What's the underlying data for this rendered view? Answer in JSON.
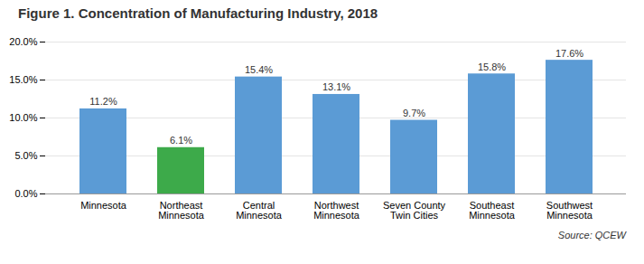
{
  "chart_data": {
    "type": "bar",
    "title": "Figure 1.  Concentration of Manufacturing Industry, 2018",
    "categories": [
      "Minnesota",
      "Northeast\nMinnesota",
      "Central\nMinnesota",
      "Northwest\nMinnesota",
      "Seven County\nTwin Cities",
      "Southeast\nMinnesota",
      "Southwest\nMinnesota"
    ],
    "values": [
      11.2,
      6.1,
      15.4,
      13.1,
      9.7,
      15.8,
      17.6
    ],
    "value_labels": [
      "11.2%",
      "6.1%",
      "15.4%",
      "13.1%",
      "9.7%",
      "15.8%",
      "17.6%"
    ],
    "colors": [
      "#5B9BD5",
      "#3DAA4A",
      "#5B9BD5",
      "#5B9BD5",
      "#5B9BD5",
      "#5B9BD5",
      "#5B9BD5"
    ],
    "ylim": [
      0,
      20
    ],
    "yticks": [
      {
        "value": 0,
        "label": "0.0%"
      },
      {
        "value": 5,
        "label": "5.0%"
      },
      {
        "value": 10,
        "label": "10.0%"
      },
      {
        "value": 15,
        "label": "15.0%"
      },
      {
        "value": 20,
        "label": "20.0%"
      }
    ],
    "grid": true,
    "data_labels": true,
    "annotations": [
      "Source:  QCEW"
    ]
  }
}
